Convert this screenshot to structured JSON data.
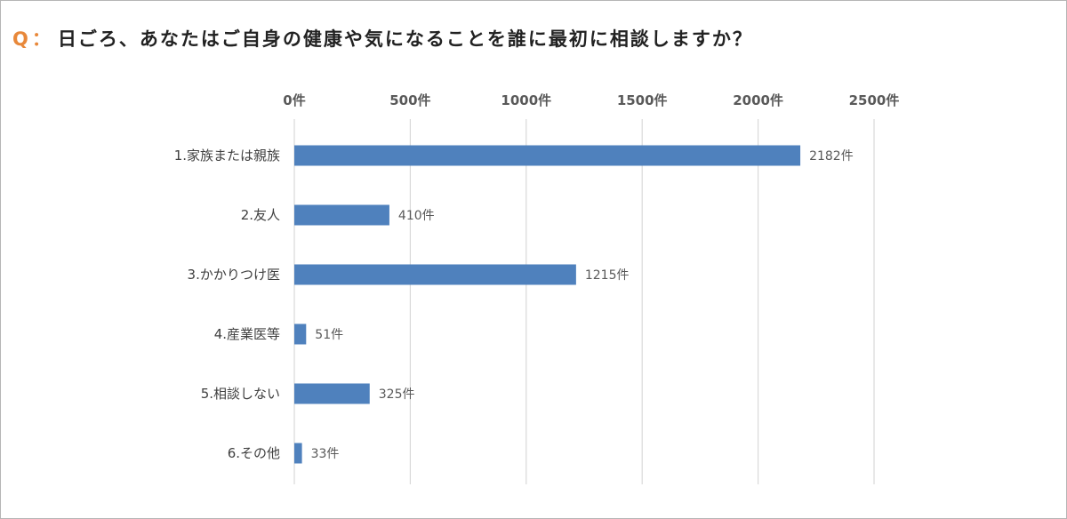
{
  "question": {
    "prefix": "Q",
    "colon": "：",
    "text": "日ごろ、あなたはご自身の健康や気になることを誰に最初に相談しますか？"
  },
  "colors": {
    "bar": "#4f81bd",
    "accent": "#e8883a",
    "grid": "#d9d9d9"
  },
  "chart_data": {
    "type": "bar",
    "orientation": "horizontal",
    "axis_position": "top",
    "categories": [
      "1.家族または親族",
      "2.友人",
      "3.かかりつけ医",
      "4.産業医等",
      "5.相談しない",
      "6.その他"
    ],
    "values": [
      2182,
      410,
      1215,
      51,
      325,
      33
    ],
    "data_labels": [
      "2182件",
      "410件",
      "1215件",
      "51件",
      "325件",
      "33件"
    ],
    "xlim": [
      0,
      2500
    ],
    "ticks": [
      0,
      500,
      1000,
      1500,
      2000,
      2500
    ],
    "tick_labels": [
      "0件",
      "500件",
      "1000件",
      "1500件",
      "2000件",
      "2500件"
    ],
    "grid": true,
    "legend": "none"
  }
}
